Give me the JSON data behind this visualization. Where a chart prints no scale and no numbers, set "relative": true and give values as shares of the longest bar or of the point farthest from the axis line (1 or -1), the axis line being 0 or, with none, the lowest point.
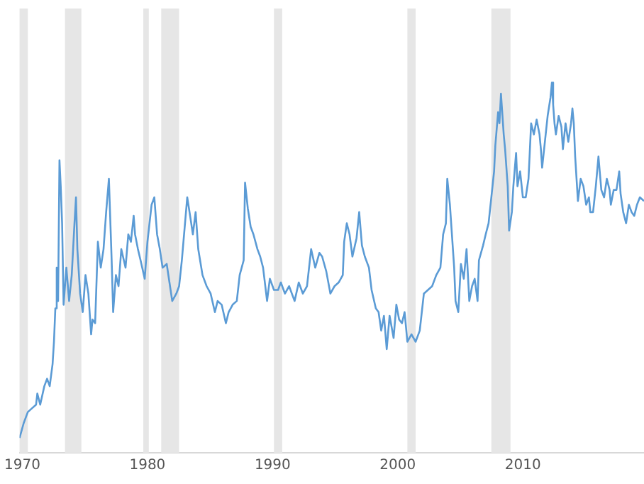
{
  "chart_data": {
    "type": "line",
    "relative": true,
    "tick_labels": "x",
    "xlim": [
      1969.78,
      2019.68
    ],
    "xticks": [
      1970,
      1980,
      1990,
      2000,
      2010
    ],
    "bands": [
      {
        "axis": "x",
        "from": 1969.78,
        "to": 1970.44,
        "color": "#e6e6e6"
      },
      {
        "axis": "x",
        "from": 1973.41,
        "to": 1974.72,
        "color": "#e6e6e6"
      },
      {
        "axis": "x",
        "from": 1979.67,
        "to": 1980.11,
        "color": "#e6e6e6"
      },
      {
        "axis": "x",
        "from": 1981.1,
        "to": 1982.53,
        "color": "#e6e6e6"
      },
      {
        "axis": "x",
        "from": 1990.11,
        "to": 1990.77,
        "color": "#e6e6e6"
      },
      {
        "axis": "x",
        "from": 2000.77,
        "to": 2001.43,
        "color": "#e6e6e6"
      },
      {
        "axis": "x",
        "from": 2007.48,
        "to": 2009.01,
        "color": "#e6e6e6"
      }
    ],
    "series": [
      {
        "color": "#5b9bd5",
        "x": [
          1969.78,
          1970.11,
          1970.44,
          1970.77,
          1971.1,
          1971.2,
          1971.43,
          1971.76,
          1971.98,
          1972.19,
          1972.42,
          1972.53,
          1972.64,
          1972.75,
          1972.86,
          1972.97,
          1973.07,
          1973.18,
          1973.3,
          1973.52,
          1973.74,
          1973.95,
          1974.17,
          1974.29,
          1974.4,
          1974.62,
          1974.83,
          1975.05,
          1975.28,
          1975.5,
          1975.61,
          1975.82,
          1976.04,
          1976.27,
          1976.49,
          1976.7,
          1976.92,
          1977.14,
          1977.26,
          1977.48,
          1977.69,
          1977.91,
          1978.25,
          1978.47,
          1978.68,
          1978.9,
          1979.01,
          1979.24,
          1979.45,
          1979.78,
          1980.0,
          1980.33,
          1980.55,
          1980.77,
          1980.99,
          1981.21,
          1981.54,
          1981.76,
          1981.98,
          1982.31,
          1982.53,
          1982.75,
          1983.18,
          1983.41,
          1983.63,
          1983.85,
          1984.06,
          1984.4,
          1984.73,
          1985.05,
          1985.39,
          1985.61,
          1985.93,
          1986.27,
          1986.49,
          1986.81,
          1987.14,
          1987.37,
          1987.69,
          1987.8,
          1988.02,
          1988.25,
          1988.47,
          1988.79,
          1989.01,
          1989.24,
          1989.56,
          1989.78,
          1990.11,
          1990.44,
          1990.66,
          1990.99,
          1991.32,
          1991.76,
          1992.09,
          1992.42,
          1992.75,
          1993.08,
          1993.41,
          1993.74,
          1993.96,
          1994.29,
          1994.62,
          1994.95,
          1995.28,
          1995.61,
          1995.72,
          1995.93,
          1996.15,
          1996.38,
          1996.71,
          1996.92,
          1997.14,
          1997.37,
          1997.7,
          1997.91,
          1998.25,
          1998.47,
          1998.68,
          1998.9,
          1999.12,
          1999.35,
          1999.67,
          1999.89,
          2000.11,
          2000.34,
          2000.55,
          2000.77,
          2001.1,
          2001.43,
          2001.76,
          2002.09,
          2002.42,
          2002.75,
          2003.08,
          2003.41,
          2003.63,
          2003.85,
          2003.96,
          2004.17,
          2004.51,
          2004.62,
          2004.84,
          2005.05,
          2005.28,
          2005.5,
          2005.72,
          2005.94,
          2006.15,
          2006.38,
          2006.49,
          2006.82,
          2007.03,
          2007.26,
          2007.48,
          2007.7,
          2007.8,
          2008.02,
          2008.13,
          2008.25,
          2008.47,
          2008.58,
          2008.79,
          2008.9,
          2009.12,
          2009.24,
          2009.46,
          2009.57,
          2009.78,
          2010.0,
          2010.23,
          2010.45,
          2010.55,
          2010.66,
          2010.88,
          2011.1,
          2011.33,
          2011.44,
          2011.54,
          2011.76,
          2011.98,
          2012.21,
          2012.32,
          2012.42,
          2012.53,
          2012.64,
          2012.86,
          2013.08,
          2013.2,
          2013.41,
          2013.63,
          2013.85,
          2013.96,
          2014.07,
          2014.18,
          2014.4,
          2014.62,
          2014.84,
          2015.06,
          2015.28,
          2015.39,
          2015.61,
          2015.83,
          2016.04,
          2016.27,
          2016.49,
          2016.71,
          2016.93,
          2017.03,
          2017.26,
          2017.48,
          2017.7,
          2017.81,
          2018.02,
          2018.25,
          2018.47,
          2018.69,
          2018.9,
          2019.12,
          2019.35,
          2019.68
        ],
        "values": [
          0.04,
          0.08,
          0.11,
          0.12,
          0.13,
          0.16,
          0.13,
          0.18,
          0.2,
          0.18,
          0.24,
          0.3,
          0.39,
          0.5,
          0.41,
          0.79,
          0.72,
          0.62,
          0.4,
          0.5,
          0.41,
          0.48,
          0.62,
          0.69,
          0.55,
          0.43,
          0.38,
          0.48,
          0.43,
          0.32,
          0.36,
          0.35,
          0.57,
          0.5,
          0.55,
          0.65,
          0.74,
          0.52,
          0.38,
          0.48,
          0.45,
          0.55,
          0.5,
          0.59,
          0.57,
          0.64,
          0.59,
          0.55,
          0.52,
          0.47,
          0.57,
          0.67,
          0.69,
          0.59,
          0.55,
          0.5,
          0.51,
          0.46,
          0.41,
          0.43,
          0.45,
          0.52,
          0.69,
          0.64,
          0.59,
          0.65,
          0.55,
          0.48,
          0.45,
          0.43,
          0.38,
          0.41,
          0.4,
          0.35,
          0.38,
          0.4,
          0.41,
          0.48,
          0.52,
          0.73,
          0.66,
          0.61,
          0.59,
          0.55,
          0.53,
          0.5,
          0.41,
          0.47,
          0.44,
          0.44,
          0.46,
          0.43,
          0.45,
          0.41,
          0.46,
          0.43,
          0.45,
          0.55,
          0.5,
          0.54,
          0.53,
          0.49,
          0.43,
          0.45,
          0.46,
          0.48,
          0.57,
          0.62,
          0.59,
          0.53,
          0.58,
          0.65,
          0.56,
          0.53,
          0.5,
          0.44,
          0.39,
          0.38,
          0.33,
          0.37,
          0.28,
          0.37,
          0.31,
          0.4,
          0.36,
          0.35,
          0.38,
          0.3,
          0.32,
          0.3,
          0.33,
          0.43,
          0.44,
          0.45,
          0.48,
          0.5,
          0.59,
          0.62,
          0.74,
          0.67,
          0.5,
          0.41,
          0.38,
          0.51,
          0.47,
          0.55,
          0.41,
          0.45,
          0.47,
          0.41,
          0.52,
          0.56,
          0.59,
          0.62,
          0.69,
          0.76,
          0.83,
          0.92,
          0.89,
          0.97,
          0.86,
          0.82,
          0.72,
          0.6,
          0.65,
          0.72,
          0.81,
          0.72,
          0.76,
          0.69,
          0.69,
          0.74,
          0.81,
          0.89,
          0.86,
          0.9,
          0.86,
          0.82,
          0.77,
          0.84,
          0.91,
          0.96,
          1,
          0.94,
          0.89,
          0.86,
          0.91,
          0.88,
          0.82,
          0.89,
          0.84,
          0.89,
          0.93,
          0.89,
          0.8,
          0.68,
          0.74,
          0.72,
          0.67,
          0.69,
          0.65,
          0.65,
          0.72,
          0.8,
          0.71,
          0.69,
          0.74,
          0.71,
          0.67,
          0.71,
          0.71,
          0.76,
          0.7,
          0.65,
          0.62,
          0.67,
          0.65,
          0.64,
          0.67,
          0.69,
          0.68
        ]
      }
    ]
  }
}
